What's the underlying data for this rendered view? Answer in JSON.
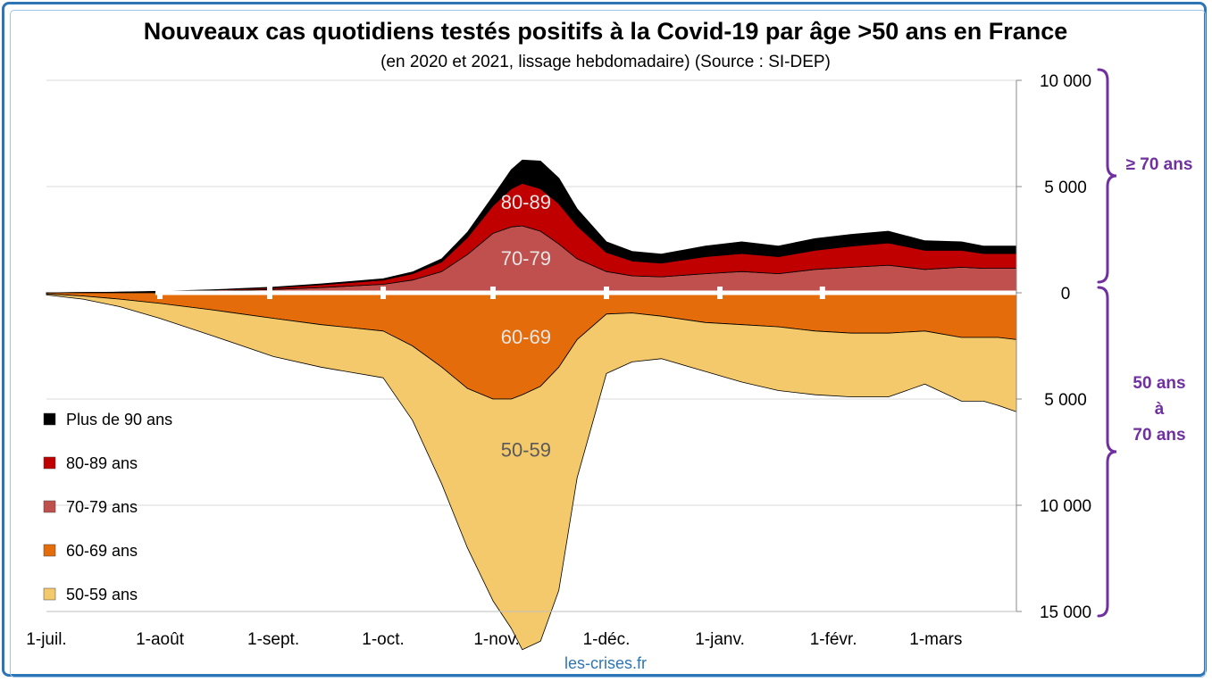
{
  "chart_data": {
    "type": "area",
    "title": "Nouveaux cas quotidiens testés positifs à la Covid-19 par âge >50 ans en France",
    "subtitle": "(en 2020 et 2021, lissage hebdomadaire) (Source : SI-DEP)",
    "source": "les-crises.fr",
    "x_tick_labels": [
      "1-juil.",
      "1-août",
      "1-sept.",
      "1-oct.",
      "1-nov.",
      "1-déc.",
      "1-janv.",
      "1-févr.",
      "1-mars"
    ],
    "x_range_days": [
      0,
      265
    ],
    "y_range": [
      -15000,
      10000
    ],
    "y_tick_values": [
      10000,
      5000,
      0,
      -5000,
      -10000,
      -15000
    ],
    "y_tick_labels": [
      "10 000",
      "5 000",
      "0",
      "5 000",
      "10 000",
      "15 000"
    ],
    "x_days": [
      0,
      10,
      20,
      31,
      45,
      62,
      75,
      92,
      100,
      108,
      115,
      122,
      127,
      130,
      135,
      140,
      145,
      153,
      160,
      168,
      180,
      190,
      200,
      210,
      220,
      230,
      240,
      250,
      256,
      260,
      265
    ],
    "series_above": [
      {
        "name": "70-79 ans",
        "label": "70-79",
        "color": "#c0504d",
        "values": [
          0,
          10,
          20,
          40,
          80,
          160,
          250,
          400,
          600,
          1000,
          1800,
          2800,
          3100,
          3150,
          2900,
          2300,
          1600,
          1000,
          800,
          750,
          900,
          1000,
          900,
          1100,
          1200,
          1300,
          1100,
          1200,
          1150,
          1150,
          1150
        ]
      },
      {
        "name": "80-89 ans",
        "label": "80-89",
        "color": "#c00000",
        "values": [
          0,
          5,
          10,
          20,
          40,
          80,
          130,
          200,
          300,
          450,
          800,
          1300,
          1800,
          2000,
          2000,
          1900,
          1550,
          900,
          700,
          650,
          800,
          850,
          800,
          900,
          1000,
          1050,
          900,
          800,
          700,
          700,
          700
        ]
      },
      {
        "name": "Plus de 90 ans",
        "label": "",
        "color": "#000000",
        "values": [
          0,
          2,
          5,
          10,
          20,
          30,
          40,
          60,
          80,
          150,
          250,
          450,
          900,
          1100,
          1300,
          1200,
          800,
          500,
          450,
          420,
          500,
          550,
          500,
          550,
          550,
          550,
          450,
          400,
          350,
          350,
          350
        ]
      }
    ],
    "series_below": [
      {
        "name": "60-69 ans",
        "label": "60-69",
        "color": "#e46c0a",
        "values": [
          50,
          150,
          300,
          500,
          800,
          1200,
          1500,
          1800,
          2500,
          3500,
          4500,
          5000,
          5000,
          4800,
          4400,
          3500,
          2200,
          1000,
          950,
          1100,
          1400,
          1500,
          1600,
          1800,
          1900,
          1900,
          1800,
          2100,
          2100,
          2100,
          2200
        ]
      },
      {
        "name": "50-59 ans",
        "label": "50-59",
        "color": "#f4c96b",
        "values": [
          50,
          150,
          350,
          700,
          1200,
          1800,
          2000,
          2200,
          3500,
          5500,
          7500,
          9500,
          10800,
          12000,
          12000,
          10500,
          6500,
          2800,
          2300,
          2000,
          2300,
          2700,
          3000,
          3000,
          3000,
          3000,
          2500,
          3000,
          3000,
          3200,
          3400
        ]
      }
    ],
    "legend": [
      {
        "name": "Plus de 90 ans",
        "color": "#000000"
      },
      {
        "name": "80-89 ans",
        "color": "#c00000"
      },
      {
        "name": "70-79 ans",
        "color": "#c0504d"
      },
      {
        "name": "60-69 ans",
        "color": "#e46c0a"
      },
      {
        "name": "50-59 ans",
        "color": "#f4c96b"
      }
    ],
    "annotations": {
      "bracket_top": "≥ 70 ans",
      "bracket_bottom": [
        "50 ans",
        "à",
        "70 ans"
      ]
    },
    "grid": true,
    "legend_position": "bottom-left"
  }
}
